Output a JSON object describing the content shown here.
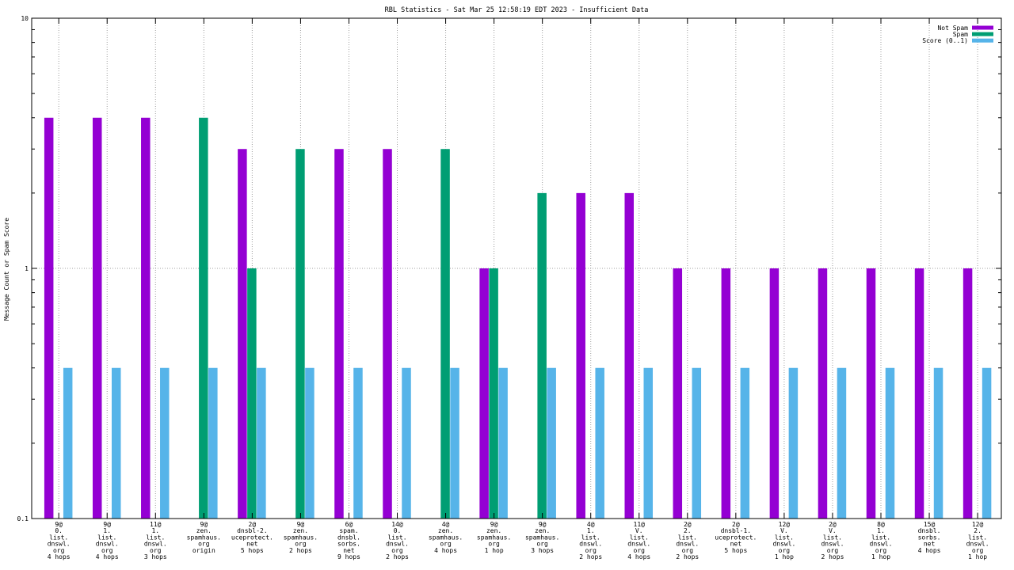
{
  "chart_data": {
    "type": "bar",
    "title": "RBL Statistics - Sat Mar 25 12:58:19 EDT 2023 - Insufficient Data",
    "xlabel": "",
    "ylabel": "Message Count or Spam Score",
    "yscale": "log",
    "ylim": [
      0.1,
      10
    ],
    "yticks": [
      "0.1",
      "1",
      "10"
    ],
    "grid": true,
    "legend_position": "top-right",
    "categories": [
      [
        "9@",
        "0.",
        "list.",
        "dnswl.",
        "org",
        "4 hops"
      ],
      [
        "9@",
        "1.",
        "list.",
        "dnswl.",
        "org",
        "4 hops"
      ],
      [
        "11@",
        "1.",
        "list.",
        "dnswl.",
        "org",
        "3 hops"
      ],
      [
        "9@",
        "zen.",
        "spamhaus.",
        "org",
        "origin"
      ],
      [
        "2@",
        "dnsbl-2.",
        "uceprotect.",
        "net",
        "5 hops"
      ],
      [
        "9@",
        "zen.",
        "spamhaus.",
        "org",
        "2 hops"
      ],
      [
        "6@",
        "spam.",
        "dnsbl.",
        "sorbs.",
        "net",
        "9 hops"
      ],
      [
        "14@",
        "0.",
        "list.",
        "dnswl.",
        "org",
        "2 hops"
      ],
      [
        "4@",
        "zen.",
        "spamhaus.",
        "org",
        "4 hops"
      ],
      [
        "9@",
        "zen.",
        "spamhaus.",
        "org",
        "1 hop"
      ],
      [
        "9@",
        "zen.",
        "spamhaus.",
        "org",
        "3 hops"
      ],
      [
        "4@",
        "1.",
        "list.",
        "dnswl.",
        "org",
        "2 hops"
      ],
      [
        "11@",
        "V.",
        "list.",
        "dnswl.",
        "org",
        "4 hops"
      ],
      [
        "2@",
        "2.",
        "list.",
        "dnswl.",
        "org",
        "2 hops"
      ],
      [
        "2@",
        "dnsbl-1.",
        "uceprotect.",
        "net",
        "5 hops"
      ],
      [
        "12@",
        "V.",
        "list.",
        "dnswl.",
        "org",
        "1 hop"
      ],
      [
        "2@",
        "V.",
        "list.",
        "dnswl.",
        "org",
        "2 hops"
      ],
      [
        "8@",
        "1.",
        "list.",
        "dnswl.",
        "org",
        "1 hop"
      ],
      [
        "15@",
        "dnsbl.",
        "sorbs.",
        "net",
        "4 hops"
      ],
      [
        "12@",
        "2.",
        "list.",
        "dnswl.",
        "org",
        "1 hop"
      ]
    ],
    "series": [
      {
        "name": "Not Spam",
        "color": "#9400d3",
        "values": [
          4,
          4,
          4,
          null,
          3,
          null,
          3,
          3,
          null,
          1,
          null,
          2,
          2,
          1,
          1,
          1,
          1,
          1,
          1,
          1
        ]
      },
      {
        "name": "Spam",
        "color": "#009e73",
        "values": [
          null,
          null,
          null,
          4,
          1,
          3,
          null,
          null,
          3,
          1,
          2,
          null,
          null,
          null,
          null,
          null,
          null,
          null,
          null,
          null
        ]
      },
      {
        "name": "Score (0..1)",
        "color": "#56b4e9",
        "values": [
          0.4,
          0.4,
          0.4,
          0.4,
          0.4,
          0.4,
          0.4,
          0.4,
          0.4,
          0.4,
          0.4,
          0.4,
          0.4,
          0.4,
          0.4,
          0.4,
          0.4,
          0.4,
          0.4,
          0.4
        ]
      }
    ]
  }
}
